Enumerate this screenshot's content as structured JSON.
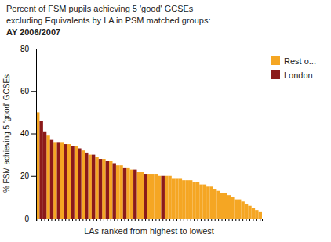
{
  "chart_data": {
    "type": "bar",
    "title": [
      "Percent of FSM pupils achieving 5 'good' GCSEs",
      "excluding Equivalents by LA in PSM matched groups:",
      "AY 2006/2007"
    ],
    "xlabel": "LAs ranked from highest to lowest",
    "ylabel": "% FSM achieving 5 'good' GCSEs",
    "categories": [
      null,
      null,
      null,
      null,
      null,
      null,
      null,
      null,
      null,
      null,
      null,
      null,
      null,
      null,
      null,
      null,
      null,
      null,
      null,
      null,
      null,
      null,
      null,
      null,
      null,
      null,
      null,
      null,
      null,
      null,
      null,
      null,
      null,
      null,
      null,
      null,
      null,
      null,
      null,
      null,
      null,
      null,
      null,
      null,
      null,
      null,
      null,
      null,
      null,
      null,
      null,
      null,
      null,
      null,
      null,
      null,
      null,
      null,
      null,
      null,
      null,
      null,
      null,
      null,
      null
    ],
    "series": [
      {
        "name": "Rest o...",
        "color": "#F5A623",
        "values": [
          50,
          null,
          null,
          39,
          null,
          36,
          null,
          36,
          null,
          35,
          null,
          34,
          null,
          32,
          null,
          30,
          null,
          29,
          null,
          28,
          null,
          27,
          null,
          25,
          25,
          null,
          24,
          23,
          null,
          22,
          22,
          null,
          21,
          21,
          21,
          20,
          null,
          20,
          20,
          19,
          19,
          19,
          18,
          18,
          18,
          17,
          17,
          16,
          16,
          15,
          15,
          14,
          13,
          12,
          12,
          11,
          10,
          9,
          9,
          8,
          7,
          6,
          5,
          4,
          3
        ]
      },
      {
        "name": "London",
        "color": "#8B1A1A",
        "values": [
          null,
          46,
          41,
          null,
          37,
          null,
          36,
          null,
          35,
          null,
          34,
          null,
          33,
          null,
          31,
          null,
          30,
          null,
          28,
          null,
          27,
          null,
          26,
          null,
          null,
          24,
          null,
          null,
          23,
          null,
          null,
          21,
          null,
          null,
          null,
          null,
          20,
          null,
          null,
          null,
          null,
          null,
          null,
          null,
          null,
          null,
          null,
          null,
          null,
          null,
          null,
          null,
          null,
          null,
          null,
          null,
          null,
          null,
          null,
          null,
          null,
          null,
          null,
          null,
          null
        ]
      }
    ],
    "stacked": true,
    "ylim": [
      0,
      80
    ],
    "yticks": [
      0,
      20,
      40,
      60,
      80
    ],
    "grid": false,
    "legend": "right",
    "tick_labels": "y"
  }
}
